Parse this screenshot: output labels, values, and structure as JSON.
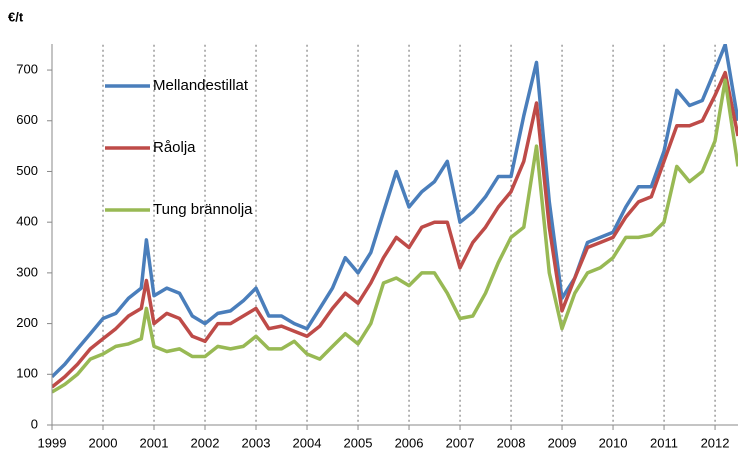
{
  "chart_data": {
    "type": "line",
    "y_label": "€/t",
    "x": [
      1999.0,
      1999.25,
      1999.5,
      1999.75,
      2000.0,
      2000.25,
      2000.5,
      2000.75,
      2000.85,
      2001.0,
      2001.25,
      2001.5,
      2001.75,
      2002.0,
      2002.25,
      2002.5,
      2002.75,
      2003.0,
      2003.25,
      2003.5,
      2003.75,
      2004.0,
      2004.25,
      2004.5,
      2004.75,
      2005.0,
      2005.25,
      2005.5,
      2005.75,
      2006.0,
      2006.25,
      2006.5,
      2006.75,
      2007.0,
      2007.25,
      2007.5,
      2007.75,
      2008.0,
      2008.25,
      2008.5,
      2008.75,
      2009.0,
      2009.25,
      2009.5,
      2009.75,
      2010.0,
      2010.25,
      2010.5,
      2010.75,
      2011.0,
      2011.25,
      2011.5,
      2011.75,
      2012.0,
      2012.2,
      2012.45
    ],
    "series": [
      {
        "name": "Mellandestillat",
        "color": "#4a7ebb",
        "values": [
          95,
          120,
          150,
          180,
          210,
          220,
          250,
          270,
          365,
          255,
          270,
          260,
          215,
          200,
          220,
          225,
          245,
          270,
          215,
          215,
          200,
          190,
          230,
          270,
          330,
          300,
          340,
          420,
          500,
          430,
          460,
          480,
          520,
          400,
          420,
          450,
          490,
          490,
          610,
          715,
          440,
          250,
          290,
          360,
          370,
          380,
          430,
          470,
          470,
          540,
          660,
          630,
          640,
          700,
          750,
          600
        ]
      },
      {
        "name": "Råolja",
        "color": "#be4b48",
        "values": [
          75,
          95,
          120,
          150,
          170,
          190,
          215,
          230,
          285,
          200,
          220,
          210,
          175,
          165,
          200,
          200,
          215,
          230,
          190,
          195,
          185,
          175,
          195,
          230,
          260,
          240,
          280,
          330,
          370,
          350,
          390,
          400,
          400,
          310,
          360,
          390,
          430,
          460,
          520,
          635,
          390,
          225,
          290,
          350,
          360,
          370,
          410,
          440,
          450,
          520,
          590,
          590,
          600,
          650,
          695,
          570
        ]
      },
      {
        "name": "Tung brännolja",
        "color": "#98b954",
        "values": [
          65,
          80,
          100,
          130,
          140,
          155,
          160,
          170,
          230,
          155,
          145,
          150,
          135,
          135,
          155,
          150,
          155,
          175,
          150,
          150,
          165,
          140,
          130,
          155,
          180,
          160,
          200,
          280,
          290,
          275,
          300,
          300,
          260,
          210,
          215,
          260,
          320,
          370,
          390,
          550,
          300,
          190,
          260,
          300,
          310,
          330,
          370,
          370,
          375,
          400,
          510,
          480,
          500,
          560,
          680,
          510
        ]
      }
    ],
    "xlim": [
      1999,
      2012.45
    ],
    "xticks": [
      1999,
      2000,
      2001,
      2002,
      2003,
      2004,
      2005,
      2006,
      2007,
      2008,
      2009,
      2010,
      2011,
      2012
    ],
    "ylim": [
      0,
      750
    ],
    "yticks": [
      0,
      100,
      200,
      300,
      400,
      500,
      600,
      700
    ],
    "grid": true
  }
}
